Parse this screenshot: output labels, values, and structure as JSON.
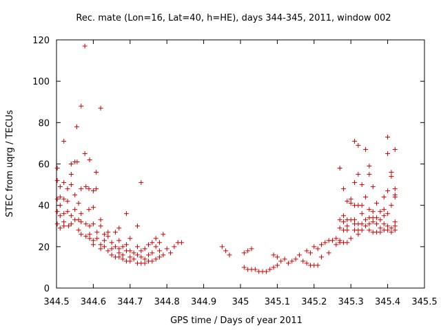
{
  "chart_data": {
    "type": "scatter",
    "title": "Rec. mate (Lon=16, Lat=40, h=HE), days 344-345, 2011, window 002",
    "xlabel": "GPS time / Days of year 2011",
    "ylabel": "STEC from uqrg / TECUs",
    "xlim": [
      344.5,
      345.5
    ],
    "ylim": [
      0,
      120
    ],
    "x_ticks": [
      "344.5",
      "344.6",
      "344.7",
      "344.8",
      "344.9",
      "345",
      "345.1",
      "345.2",
      "345.3",
      "345.4",
      "345.5"
    ],
    "y_ticks": [
      "0",
      "20",
      "40",
      "60",
      "80",
      "100",
      "120"
    ],
    "grid": false,
    "legend": "none",
    "marker": "plus",
    "color": "#cc0000",
    "series": [
      {
        "points": [
          [
            344.502,
            58
          ],
          [
            344.502,
            52
          ],
          [
            344.502,
            43
          ],
          [
            344.502,
            37
          ],
          [
            344.502,
            31
          ],
          [
            344.51,
            49
          ],
          [
            344.51,
            44
          ],
          [
            344.51,
            40
          ],
          [
            344.51,
            35
          ],
          [
            344.51,
            29
          ],
          [
            344.52,
            71
          ],
          [
            344.52,
            51
          ],
          [
            344.52,
            43
          ],
          [
            344.52,
            36
          ],
          [
            344.52,
            32
          ],
          [
            344.52,
            30
          ],
          [
            344.53,
            48
          ],
          [
            344.53,
            42
          ],
          [
            344.53,
            37
          ],
          [
            344.533,
            30
          ],
          [
            344.54,
            60
          ],
          [
            344.54,
            55
          ],
          [
            344.54,
            50
          ],
          [
            344.54,
            35
          ],
          [
            344.54,
            31
          ],
          [
            344.55,
            61
          ],
          [
            344.55,
            45
          ],
          [
            344.55,
            38
          ],
          [
            344.55,
            33
          ],
          [
            344.555,
            78
          ],
          [
            344.556,
            61
          ],
          [
            344.56,
            41
          ],
          [
            344.56,
            33
          ],
          [
            344.56,
            28
          ],
          [
            344.567,
            88
          ],
          [
            344.567,
            48
          ],
          [
            344.567,
            36
          ],
          [
            344.567,
            32
          ],
          [
            344.567,
            26
          ],
          [
            344.577,
            117
          ],
          [
            344.577,
            65
          ],
          [
            344.58,
            49
          ],
          [
            344.58,
            31
          ],
          [
            344.58,
            25
          ],
          [
            344.588,
            48
          ],
          [
            344.588,
            38
          ],
          [
            344.59,
            62
          ],
          [
            344.59,
            30
          ],
          [
            344.59,
            26
          ],
          [
            344.59,
            24
          ],
          [
            344.6,
            47
          ],
          [
            344.6,
            39
          ],
          [
            344.6,
            31
          ],
          [
            344.6,
            23
          ],
          [
            344.6,
            21
          ],
          [
            344.608,
            56
          ],
          [
            344.608,
            48
          ],
          [
            344.61,
            27
          ],
          [
            344.61,
            24
          ],
          [
            344.62,
            87
          ],
          [
            344.62,
            33
          ],
          [
            344.62,
            30
          ],
          [
            344.62,
            21
          ],
          [
            344.62,
            19
          ],
          [
            344.63,
            26
          ],
          [
            344.63,
            23
          ],
          [
            344.63,
            20
          ],
          [
            344.64,
            27
          ],
          [
            344.64,
            25
          ],
          [
            344.64,
            18
          ],
          [
            344.65,
            22
          ],
          [
            344.65,
            19
          ],
          [
            344.65,
            16
          ],
          [
            344.66,
            27
          ],
          [
            344.66,
            20
          ],
          [
            344.66,
            15
          ],
          [
            344.67,
            29
          ],
          [
            344.67,
            23
          ],
          [
            344.67,
            19
          ],
          [
            344.67,
            17
          ],
          [
            344.67,
            15
          ],
          [
            344.68,
            20
          ],
          [
            344.68,
            16
          ],
          [
            344.68,
            14
          ],
          [
            344.69,
            36
          ],
          [
            344.69,
            21
          ],
          [
            344.69,
            18
          ],
          [
            344.69,
            13
          ],
          [
            344.7,
            24
          ],
          [
            344.7,
            18
          ],
          [
            344.7,
            15
          ],
          [
            344.7,
            13
          ],
          [
            344.71,
            17
          ],
          [
            344.71,
            14
          ],
          [
            344.72,
            30
          ],
          [
            344.72,
            20
          ],
          [
            344.72,
            16
          ],
          [
            344.72,
            12
          ],
          [
            344.73,
            51
          ],
          [
            344.73,
            18
          ],
          [
            344.73,
            15
          ],
          [
            344.73,
            12
          ],
          [
            344.74,
            19
          ],
          [
            344.74,
            14
          ],
          [
            344.74,
            12
          ],
          [
            344.75,
            21
          ],
          [
            344.75,
            16
          ],
          [
            344.75,
            13
          ],
          [
            344.76,
            22
          ],
          [
            344.76,
            17
          ],
          [
            344.76,
            13
          ],
          [
            344.77,
            24
          ],
          [
            344.77,
            20
          ],
          [
            344.77,
            14
          ],
          [
            344.78,
            22
          ],
          [
            344.78,
            18
          ],
          [
            344.78,
            15
          ],
          [
            344.79,
            26
          ],
          [
            344.79,
            16
          ],
          [
            344.8,
            19
          ],
          [
            344.81,
            17
          ],
          [
            344.82,
            20
          ],
          [
            344.83,
            22
          ],
          [
            344.84,
            22
          ],
          [
            344.95,
            20
          ],
          [
            344.96,
            18
          ],
          [
            344.97,
            16
          ],
          [
            345.01,
            10
          ],
          [
            345.01,
            17
          ],
          [
            345.02,
            9
          ],
          [
            345.02,
            18
          ],
          [
            345.03,
            9
          ],
          [
            345.03,
            19
          ],
          [
            345.04,
            9
          ],
          [
            345.05,
            8
          ],
          [
            345.06,
            8
          ],
          [
            345.07,
            8
          ],
          [
            345.08,
            9
          ],
          [
            345.09,
            16
          ],
          [
            345.09,
            10
          ],
          [
            345.1,
            15
          ],
          [
            345.1,
            11
          ],
          [
            345.11,
            13
          ],
          [
            345.12,
            14
          ],
          [
            345.13,
            12
          ],
          [
            345.14,
            13
          ],
          [
            345.15,
            14
          ],
          [
            345.16,
            16
          ],
          [
            345.17,
            13
          ],
          [
            345.18,
            18
          ],
          [
            345.18,
            12
          ],
          [
            345.19,
            17
          ],
          [
            345.19,
            11
          ],
          [
            345.2,
            20
          ],
          [
            345.2,
            11
          ],
          [
            345.21,
            19
          ],
          [
            345.21,
            11
          ],
          [
            345.22,
            21
          ],
          [
            345.22,
            15
          ],
          [
            345.23,
            22
          ],
          [
            345.24,
            23
          ],
          [
            345.24,
            17
          ],
          [
            345.25,
            23
          ],
          [
            345.26,
            24
          ],
          [
            345.26,
            21
          ],
          [
            345.27,
            58
          ],
          [
            345.27,
            33
          ],
          [
            345.27,
            29
          ],
          [
            345.27,
            23
          ],
          [
            345.27,
            22
          ],
          [
            345.28,
            48
          ],
          [
            345.28,
            35
          ],
          [
            345.28,
            32
          ],
          [
            345.28,
            28
          ],
          [
            345.28,
            22
          ],
          [
            345.29,
            42
          ],
          [
            345.29,
            33
          ],
          [
            345.29,
            30
          ],
          [
            345.29,
            28
          ],
          [
            345.29,
            22
          ],
          [
            345.3,
            43
          ],
          [
            345.3,
            41
          ],
          [
            345.3,
            33
          ],
          [
            345.3,
            24
          ],
          [
            345.31,
            71
          ],
          [
            345.31,
            51
          ],
          [
            345.31,
            40
          ],
          [
            345.31,
            33
          ],
          [
            345.31,
            31
          ],
          [
            345.31,
            28
          ],
          [
            345.32,
            69
          ],
          [
            345.32,
            55
          ],
          [
            345.32,
            40
          ],
          [
            345.32,
            31
          ],
          [
            345.32,
            28
          ],
          [
            345.32,
            26
          ],
          [
            345.33,
            50
          ],
          [
            345.33,
            40
          ],
          [
            345.33,
            36
          ],
          [
            345.33,
            31
          ],
          [
            345.33,
            28
          ],
          [
            345.34,
            67
          ],
          [
            345.34,
            44
          ],
          [
            345.34,
            33
          ],
          [
            345.34,
            30
          ],
          [
            345.35,
            59
          ],
          [
            345.35,
            55
          ],
          [
            345.35,
            38
          ],
          [
            345.35,
            34
          ],
          [
            345.35,
            31
          ],
          [
            345.35,
            28
          ],
          [
            345.36,
            49
          ],
          [
            345.36,
            37
          ],
          [
            345.36,
            34
          ],
          [
            345.36,
            32
          ],
          [
            345.36,
            27
          ],
          [
            345.37,
            41
          ],
          [
            345.37,
            34
          ],
          [
            345.37,
            31
          ],
          [
            345.37,
            27
          ],
          [
            345.38,
            37
          ],
          [
            345.38,
            33
          ],
          [
            345.38,
            29
          ],
          [
            345.38,
            27
          ],
          [
            345.39,
            44
          ],
          [
            345.39,
            38
          ],
          [
            345.39,
            35
          ],
          [
            345.39,
            31
          ],
          [
            345.39,
            28
          ],
          [
            345.4,
            73
          ],
          [
            345.4,
            65
          ],
          [
            345.4,
            47
          ],
          [
            345.4,
            36
          ],
          [
            345.4,
            30
          ],
          [
            345.4,
            28
          ],
          [
            345.41,
            56
          ],
          [
            345.41,
            54
          ],
          [
            345.41,
            40
          ],
          [
            345.41,
            29
          ],
          [
            345.41,
            27
          ],
          [
            345.42,
            67
          ],
          [
            345.42,
            48
          ],
          [
            345.42,
            45
          ],
          [
            345.42,
            44
          ],
          [
            345.42,
            32
          ],
          [
            345.42,
            30
          ],
          [
            345.42,
            28
          ]
        ]
      }
    ]
  }
}
